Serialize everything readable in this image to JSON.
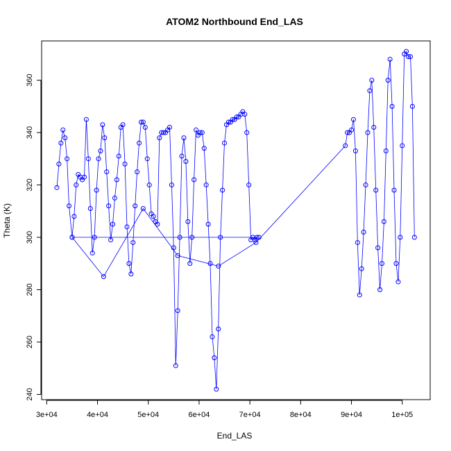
{
  "chart_data": {
    "type": "scatter",
    "title": "ATOM2 Northbound End_LAS",
    "xlabel": "End_LAS",
    "ylabel": "Theta (K)",
    "xlim": [
      29000,
      105500
    ],
    "ylim": [
      238,
      375
    ],
    "x_ticks": [
      30000,
      40000,
      50000,
      60000,
      70000,
      80000,
      90000,
      100000
    ],
    "x_tick_labels": [
      "3e+04",
      "4e+04",
      "5e+04",
      "6e+04",
      "7e+04",
      "8e+04",
      "9e+04",
      "1e+05"
    ],
    "y_ticks": [
      240,
      260,
      280,
      300,
      320,
      340,
      360
    ],
    "y_tick_labels": [
      "240",
      "260",
      "280",
      "300",
      "320",
      "340",
      "360"
    ],
    "grid": false,
    "legend": "none",
    "marker": "open-circle",
    "connected": true,
    "series": [
      {
        "color": "#0000ff",
        "x": [
          32000,
          32400,
          32800,
          33200,
          33600,
          34000,
          34400,
          35000,
          35400,
          35800,
          36200,
          36600,
          37000,
          37400,
          37800,
          38200,
          38600,
          39000,
          39400,
          39800,
          40200,
          40600,
          41000,
          41400,
          41800,
          42200,
          42600,
          43000,
          43400,
          43800,
          44200,
          44600,
          45000,
          45400,
          45800,
          46200,
          46600,
          47000,
          47400,
          47800,
          48200,
          48600,
          49000,
          49400,
          49800,
          50200,
          50600,
          51000,
          51400,
          51800,
          52200,
          52600,
          53000,
          53400,
          53800,
          54200,
          54600,
          55000,
          55400,
          55800,
          56200,
          56600,
          57000,
          57400,
          57800,
          58200,
          58600,
          59000,
          59400,
          59800,
          60200,
          60600,
          61000,
          61400,
          61800,
          62200,
          62600,
          63000,
          63400,
          63800,
          64200,
          64600,
          65000,
          65400,
          65800,
          66200,
          66600,
          67000,
          67400,
          67800,
          68200,
          68600,
          69000,
          69400,
          69800,
          70200,
          70600,
          71000,
          71400,
          71800,
          35000,
          41200,
          49000,
          55800,
          63800,
          71200,
          88800,
          89200,
          89600,
          90000,
          90400,
          90800,
          91200,
          91600,
          92000,
          92400,
          92800,
          93200,
          93600,
          94000,
          94400,
          94800,
          95200,
          95600,
          96000,
          96400,
          96800,
          97200,
          97600,
          98000,
          98400,
          98800,
          99200,
          99600,
          100000,
          100400,
          100800,
          101200,
          101600,
          102000,
          102400
        ],
        "y": [
          319,
          328,
          336,
          341,
          338,
          330,
          312,
          300,
          308,
          320,
          324,
          323,
          322,
          323,
          345,
          330,
          311,
          294,
          300,
          318,
          330,
          333,
          343,
          338,
          325,
          312,
          299,
          305,
          315,
          322,
          331,
          342,
          343,
          328,
          304,
          290,
          286,
          298,
          312,
          325,
          336,
          344,
          344,
          342,
          330,
          320,
          309,
          308,
          306,
          305,
          338,
          340,
          340,
          340,
          341,
          342,
          320,
          296,
          251,
          272,
          300,
          331,
          338,
          329,
          306,
          290,
          300,
          322,
          341,
          339,
          340,
          340,
          334,
          320,
          305,
          290,
          262,
          254,
          242,
          265,
          300,
          318,
          336,
          343,
          344,
          344,
          345,
          345,
          346,
          346,
          347,
          348,
          347,
          340,
          320,
          299,
          300,
          299,
          300,
          300,
          300,
          285,
          311,
          293,
          289,
          298,
          335,
          340,
          340,
          341,
          345,
          333,
          298,
          278,
          288,
          302,
          320,
          340,
          356,
          360,
          342,
          318,
          296,
          280,
          290,
          306,
          333,
          360,
          368,
          350,
          318,
          290,
          283,
          300,
          335,
          370,
          371,
          369,
          369,
          350,
          300
        ]
      }
    ]
  }
}
